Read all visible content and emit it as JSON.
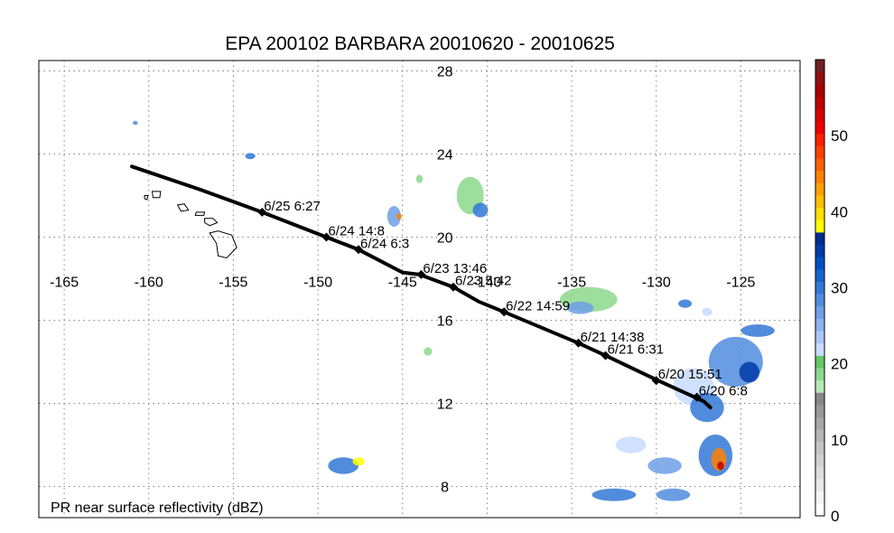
{
  "title": "EPA 200102 BARBARA 20010620 - 20010625",
  "footnote": "PR near surface reflectivity (dBZ)",
  "map": {
    "lon_range": [
      -166.5,
      -121.5
    ],
    "lat_range": [
      6.5,
      28.5
    ],
    "lon_ticks": [
      {
        "v": -165,
        "t": "-165"
      },
      {
        "v": -160,
        "t": "-160"
      },
      {
        "v": -155,
        "t": "-155"
      },
      {
        "v": -150,
        "t": "-150"
      },
      {
        "v": -145,
        "t": "-145"
      },
      {
        "v": -140,
        "t": "-140"
      },
      {
        "v": -135,
        "t": "-135"
      },
      {
        "v": -130,
        "t": "-130"
      },
      {
        "v": -125,
        "t": "-125"
      }
    ],
    "lat_ticks": [
      {
        "v": 28,
        "t": "28"
      },
      {
        "v": 24,
        "t": "24"
      },
      {
        "v": 20,
        "t": "20"
      },
      {
        "v": 16,
        "t": "16"
      },
      {
        "v": 12,
        "t": "12"
      },
      {
        "v": 8,
        "t": "8"
      }
    ],
    "grid": true
  },
  "track": {
    "color": "#000000",
    "path": [
      [
        -161.0,
        23.4
      ],
      [
        -157.0,
        22.3
      ],
      [
        -153.3,
        21.2
      ],
      [
        -149.5,
        20.0
      ],
      [
        -147.6,
        19.4
      ],
      [
        -145.0,
        18.3
      ],
      [
        -144.0,
        18.2
      ],
      [
        -142.0,
        17.6
      ],
      [
        -140.5,
        16.9
      ],
      [
        -139.0,
        16.4
      ],
      [
        -134.6,
        14.9
      ],
      [
        -133.0,
        14.3
      ],
      [
        -129.9,
        13.1
      ],
      [
        -127.2,
        12.1
      ],
      [
        -126.8,
        11.8
      ]
    ],
    "fixes": [
      {
        "lon": -153.3,
        "lat": 21.2,
        "label": "6/25 6:27"
      },
      {
        "lon": -149.5,
        "lat": 20.0,
        "label": "6/24 14:8"
      },
      {
        "lon": -147.6,
        "lat": 19.4,
        "label": "6/24 6:3"
      },
      {
        "lon": -143.9,
        "lat": 18.2,
        "label": "6/23 13:46"
      },
      {
        "lon": -142.0,
        "lat": 17.6,
        "label": "6/23 5:42"
      },
      {
        "lon": -139.0,
        "lat": 16.4,
        "label": "6/22 14:59"
      },
      {
        "lon": -134.6,
        "lat": 14.9,
        "label": "6/21 14:38"
      },
      {
        "lon": -133.0,
        "lat": 14.3,
        "label": "6/21 6:31"
      },
      {
        "lon": -130.0,
        "lat": 13.1,
        "label": "6/20 15:51"
      },
      {
        "lon": -127.6,
        "lat": 12.3,
        "label": "6/20 6:8"
      }
    ]
  },
  "islands": [
    [
      [
        -156.4,
        20.2
      ],
      [
        -155.9,
        20.3
      ],
      [
        -155.1,
        20.1
      ],
      [
        -154.8,
        19.5
      ],
      [
        -155.4,
        19.0
      ],
      [
        -155.9,
        19.1
      ],
      [
        -156.0,
        19.7
      ]
    ],
    [
      [
        -156.7,
        20.9
      ],
      [
        -156.2,
        20.9
      ],
      [
        -155.95,
        20.7
      ],
      [
        -156.4,
        20.55
      ],
      [
        -156.7,
        20.7
      ]
    ],
    [
      [
        -157.2,
        21.2
      ],
      [
        -156.7,
        21.2
      ],
      [
        -156.75,
        21.05
      ],
      [
        -157.25,
        21.05
      ]
    ],
    [
      [
        -158.3,
        21.55
      ],
      [
        -157.9,
        21.6
      ],
      [
        -157.65,
        21.3
      ],
      [
        -158.1,
        21.25
      ]
    ],
    [
      [
        -159.8,
        22.2
      ],
      [
        -159.3,
        22.2
      ],
      [
        -159.35,
        21.9
      ],
      [
        -159.75,
        21.9
      ]
    ],
    [
      [
        -160.25,
        22.0
      ],
      [
        -160.05,
        22.0
      ],
      [
        -160.1,
        21.8
      ],
      [
        -160.25,
        21.85
      ]
    ]
  ],
  "rain_cells": [
    {
      "lon": -141.0,
      "lat": 22.0,
      "rx": 0.8,
      "ry": 0.9,
      "dbz": 18
    },
    {
      "lon": -140.4,
      "lat": 21.3,
      "rx": 0.45,
      "ry": 0.35,
      "dbz": 30
    },
    {
      "lon": -145.5,
      "lat": 21.0,
      "rx": 0.4,
      "ry": 0.5,
      "dbz": 26
    },
    {
      "lon": -145.2,
      "lat": 21.0,
      "rx": 0.15,
      "ry": 0.15,
      "dbz": 45
    },
    {
      "lon": -154.0,
      "lat": 23.9,
      "rx": 0.3,
      "ry": 0.15,
      "dbz": 30
    },
    {
      "lon": -160.8,
      "lat": 25.5,
      "rx": 0.15,
      "ry": 0.1,
      "dbz": 28
    },
    {
      "lon": -144.0,
      "lat": 22.8,
      "rx": 0.2,
      "ry": 0.2,
      "dbz": 18
    },
    {
      "lon": -134.0,
      "lat": 17.0,
      "rx": 1.7,
      "ry": 0.6,
      "dbz": 18
    },
    {
      "lon": -134.5,
      "lat": 16.6,
      "rx": 0.8,
      "ry": 0.3,
      "dbz": 26
    },
    {
      "lon": -125.3,
      "lat": 14.0,
      "rx": 1.6,
      "ry": 1.2,
      "dbz": 28
    },
    {
      "lon": -124.5,
      "lat": 13.5,
      "rx": 0.6,
      "ry": 0.5,
      "dbz": 35
    },
    {
      "lon": -127.8,
      "lat": 12.8,
      "rx": 1.2,
      "ry": 0.9,
      "dbz": 22
    },
    {
      "lon": -127.0,
      "lat": 11.8,
      "rx": 1.0,
      "ry": 0.7,
      "dbz": 30
    },
    {
      "lon": -124.0,
      "lat": 15.5,
      "rx": 1.0,
      "ry": 0.3,
      "dbz": 30
    },
    {
      "lon": -126.5,
      "lat": 9.5,
      "rx": 1.0,
      "ry": 1.0,
      "dbz": 30
    },
    {
      "lon": -126.3,
      "lat": 9.3,
      "rx": 0.45,
      "ry": 0.55,
      "dbz": 45
    },
    {
      "lon": -126.2,
      "lat": 9.0,
      "rx": 0.2,
      "ry": 0.2,
      "dbz": 55
    },
    {
      "lon": -131.5,
      "lat": 10.0,
      "rx": 0.9,
      "ry": 0.4,
      "dbz": 22
    },
    {
      "lon": -129.5,
      "lat": 9.0,
      "rx": 1.0,
      "ry": 0.4,
      "dbz": 26
    },
    {
      "lon": -132.5,
      "lat": 7.6,
      "rx": 1.3,
      "ry": 0.3,
      "dbz": 30
    },
    {
      "lon": -129.0,
      "lat": 7.6,
      "rx": 1.0,
      "ry": 0.3,
      "dbz": 28
    },
    {
      "lon": -148.5,
      "lat": 9.0,
      "rx": 0.9,
      "ry": 0.4,
      "dbz": 30
    },
    {
      "lon": -147.6,
      "lat": 9.2,
      "rx": 0.35,
      "ry": 0.2,
      "dbz": 38
    },
    {
      "lon": -128.3,
      "lat": 16.8,
      "rx": 0.4,
      "ry": 0.2,
      "dbz": 30
    },
    {
      "lon": -127.0,
      "lat": 16.4,
      "rx": 0.3,
      "ry": 0.2,
      "dbz": 22
    },
    {
      "lon": -143.5,
      "lat": 14.5,
      "rx": 0.25,
      "ry": 0.2,
      "dbz": 18
    }
  ],
  "colorbar": {
    "min": 0,
    "max": 60,
    "ticks": [
      {
        "v": 0,
        "t": "0"
      },
      {
        "v": 10,
        "t": "10"
      },
      {
        "v": 20,
        "t": "20"
      },
      {
        "v": 30,
        "t": "30"
      },
      {
        "v": 40,
        "t": "40"
      },
      {
        "v": 50,
        "t": "50"
      }
    ],
    "colors": [
      "#ffffff",
      "#f4f4f4",
      "#e8e8e8",
      "#dcdcdc",
      "#d0d0d0",
      "#c4c4c4",
      "#b6b6b6",
      "#a8a8a8",
      "#989898",
      "#888888",
      "#b6e8b6",
      "#8cd88c",
      "#64c864",
      "#c8dcff",
      "#aac8f6",
      "#8cb4ee",
      "#6ea0e6",
      "#508cde",
      "#3278d6",
      "#1464ce",
      "#0050c6",
      "#003ca8",
      "#002c90",
      "#ffff00",
      "#ffe000",
      "#ffc000",
      "#ffa000",
      "#ff8000",
      "#ff6000",
      "#ff4000",
      "#ff2000",
      "#f00000",
      "#d80000",
      "#c00000",
      "#a80000",
      "#901010",
      "#702020"
    ]
  }
}
